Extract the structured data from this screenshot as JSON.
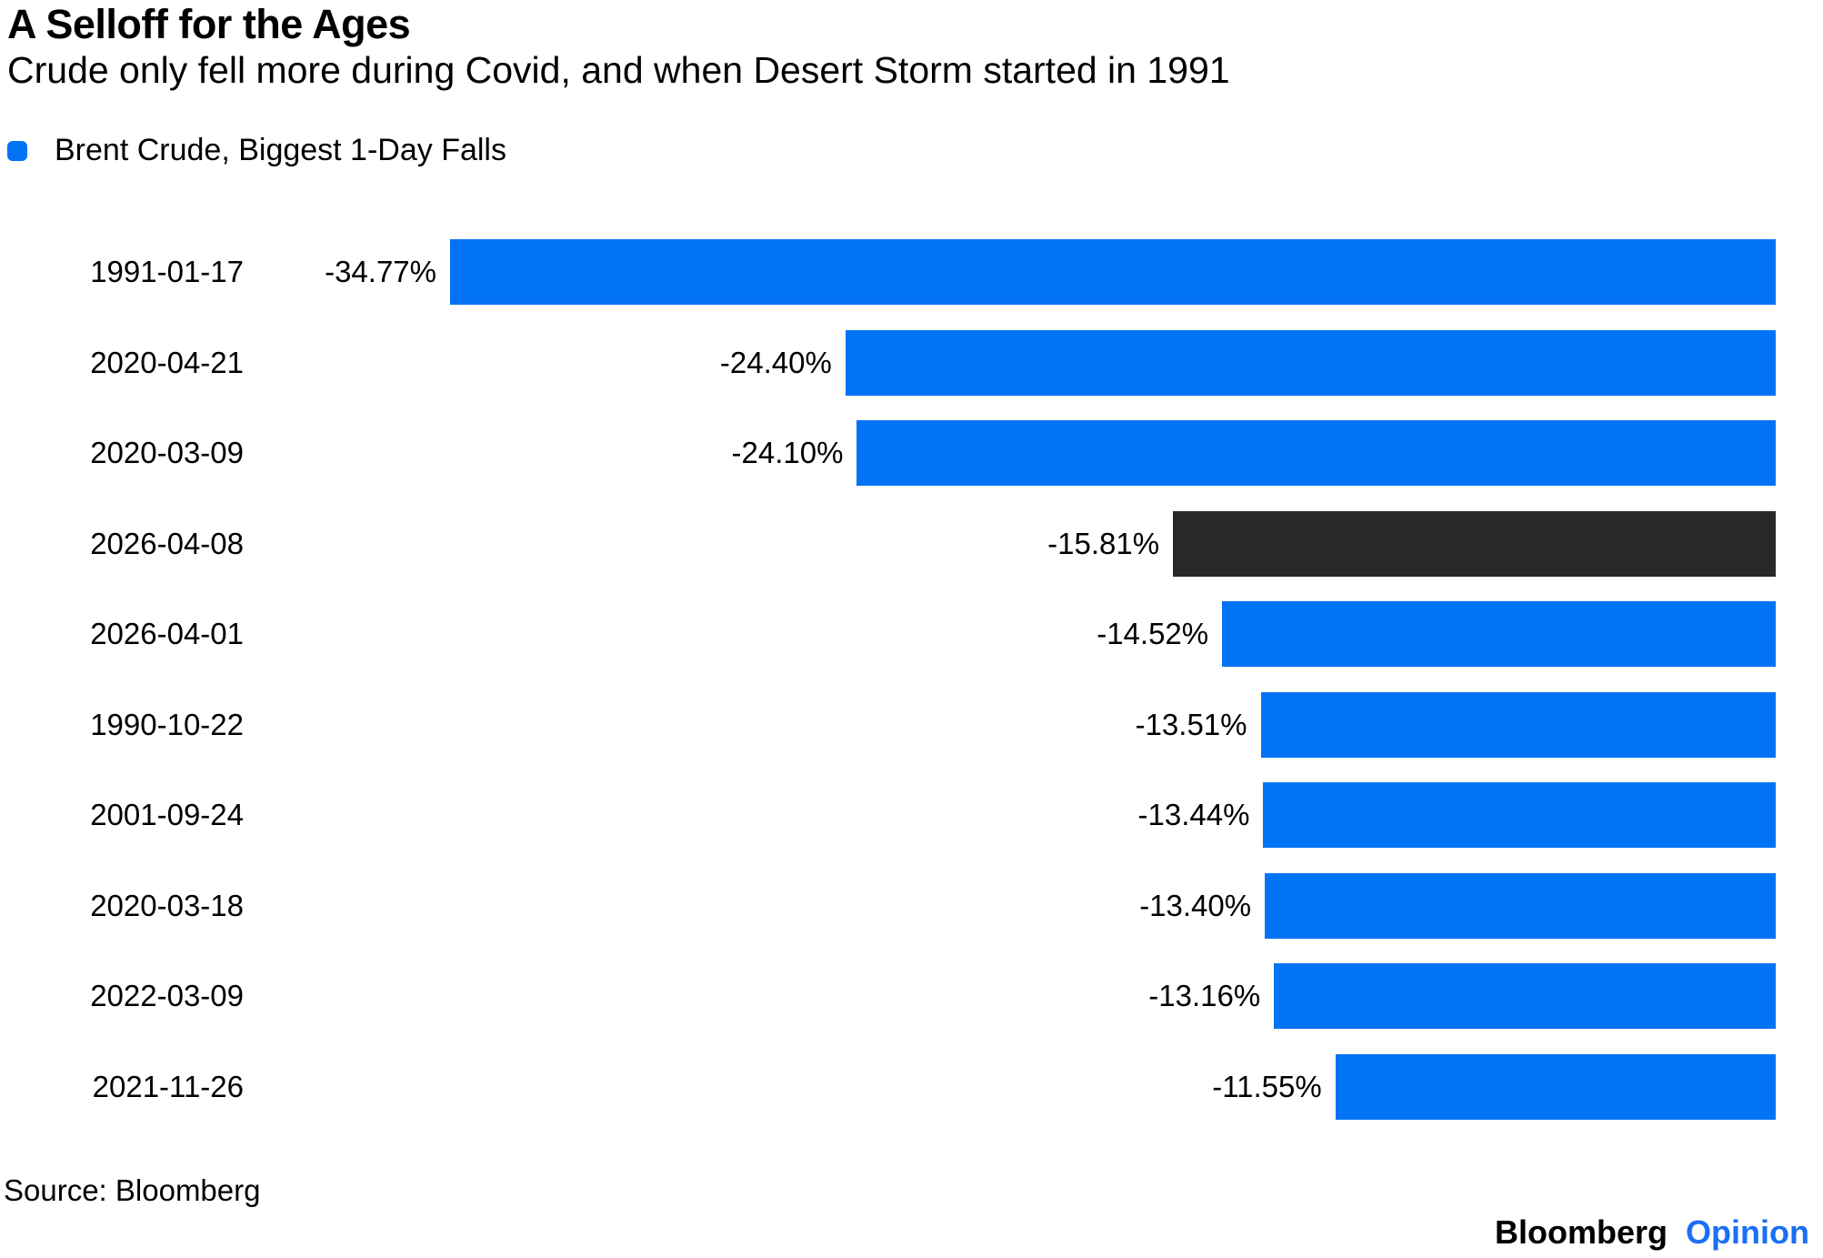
{
  "header": {
    "title": "A Selloff for the Ages",
    "subtitle": "Crude only fell more during Covid, and when Desert Storm started in 1991"
  },
  "legend": {
    "label": "Brent Crude, Biggest 1-Day Falls",
    "swatch_color": "#0273f5"
  },
  "chart_data": {
    "type": "bar",
    "orientation": "horizontal",
    "title": "A Selloff for the Ages",
    "subtitle": "Crude only fell more during Covid, and when Desert Storm started in 1991",
    "series_name": "Brent Crude, Biggest 1-Day Falls",
    "categories": [
      "1991-01-17",
      "2020-04-21",
      "2020-03-09",
      "2026-04-08",
      "2026-04-01",
      "1990-10-22",
      "2001-09-24",
      "2020-03-18",
      "2022-03-09",
      "2021-11-26"
    ],
    "values": [
      -34.77,
      -24.4,
      -24.1,
      -15.81,
      -14.52,
      -13.51,
      -13.44,
      -13.4,
      -13.16,
      -11.55
    ],
    "value_labels": [
      "-34.77%",
      "-24.40%",
      "-24.10%",
      "-15.81%",
      "-14.52%",
      "-13.51%",
      "-13.44%",
      "-13.40%",
      "-13.16%",
      "-11.55%"
    ],
    "highlight_index": 3,
    "bar_color": "#0273f5",
    "highlight_color": "#282828",
    "xlim": [
      -35,
      0
    ],
    "grid": false,
    "axis_lines": false,
    "legend_position": "top-left"
  },
  "footer": {
    "source": "Source: Bloomberg",
    "brand_name": "Bloomberg",
    "brand_division": "Opinion",
    "brand_division_color": "#1a6ff5"
  }
}
